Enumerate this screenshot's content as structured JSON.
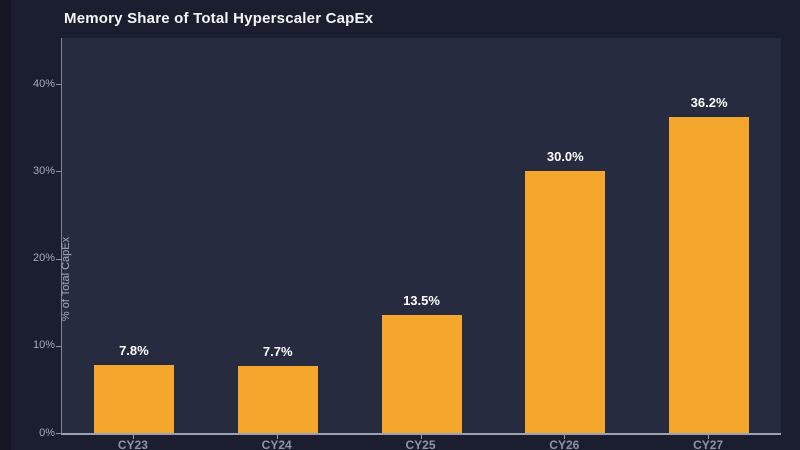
{
  "chart_data": {
    "type": "bar",
    "title": "Memory Share of Total Hyperscaler CapEx",
    "categories": [
      "CY23",
      "CY24",
      "CY25",
      "CY26",
      "CY27"
    ],
    "values": [
      7.8,
      7.7,
      13.5,
      30.0,
      36.2
    ],
    "value_labels": [
      "7.8%",
      "7.7%",
      "13.5%",
      "30.0%",
      "36.2%"
    ],
    "xlabel": "",
    "ylabel": "% of Total CapEx",
    "ylim": [
      0,
      45.3
    ],
    "yticks": [
      0,
      10,
      20,
      30,
      40
    ],
    "ytick_labels": [
      "0%",
      "10%",
      "20%",
      "30%",
      "40%"
    ],
    "grid": "off",
    "legend": "none",
    "colors": {
      "bar": "#f5a72d",
      "background": "#1b1e2f",
      "plot_background": "#272b40",
      "title_text": "#f4f5f7",
      "axis_text": "#a6aabb",
      "category_text": "#8e93a6",
      "value_label_text": "#ffffff",
      "axis_line": "#9ba0b2"
    }
  }
}
